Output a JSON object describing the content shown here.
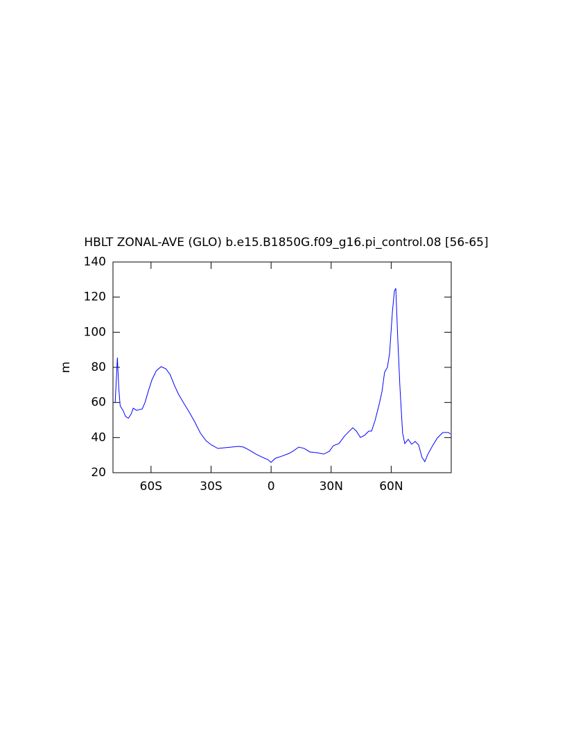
{
  "chart_data": {
    "type": "line",
    "title": "HBLT ZONAL-AVE (GLO) b.e15.B1850G.f09_g16.pi_control.08 [56-65]",
    "y_label": "m",
    "xlim": [
      -79,
      90
    ],
    "ylim": [
      20,
      140
    ],
    "xticks": [
      {
        "value": -60,
        "label": "60S"
      },
      {
        "value": -30,
        "label": "30S"
      },
      0,
      {
        "value": 30,
        "label": "30N"
      },
      {
        "value": 60,
        "label": "60N"
      }
    ],
    "yticks": [
      20,
      40,
      60,
      80,
      100,
      120,
      140
    ],
    "series": [
      {
        "color": "#0000ff",
        "x": [
          -77.9,
          -76.8,
          -76.1,
          -75.4,
          -74,
          -72.7,
          -71.3,
          -69.9,
          -68.9,
          -67.1,
          -65.7,
          -64.4,
          -63,
          -61.2,
          -59.5,
          -57.4,
          -55,
          -52.6,
          -50.5,
          -48.4,
          -46.4,
          -43.6,
          -40.8,
          -38.1,
          -35.3,
          -32.5,
          -29.8,
          -26.6,
          -23.2,
          -19.7,
          -16.3,
          -13.8,
          -11.1,
          -7.6,
          -4.2,
          -1.7,
          0,
          2.1,
          5.5,
          9,
          11.4,
          13.8,
          16.6,
          19.4,
          22.8,
          26.3,
          29.1,
          31.1,
          33.9,
          36.7,
          39.1,
          40.8,
          42.6,
          44.6,
          46.7,
          48.8,
          50.2,
          51.9,
          54,
          55.4,
          56.7,
          58.1,
          59.2,
          60.6,
          61.6,
          62.3,
          63.3,
          64.4,
          65.7,
          66.8,
          68.5,
          70.2,
          72,
          73.7,
          75.4,
          76.8,
          78.2,
          80.3,
          83,
          85.8,
          88.6,
          89.6
        ],
        "values": [
          60,
          85.5,
          68,
          58,
          55.5,
          52,
          51,
          53.5,
          56.7,
          55.5,
          56,
          56.3,
          60,
          67,
          73,
          78,
          80.4,
          79.2,
          76,
          70,
          65,
          59.5,
          54.3,
          48.8,
          42.5,
          38.2,
          35.8,
          33.8,
          34.2,
          34.6,
          35,
          34.6,
          33,
          30.6,
          28.7,
          27.5,
          25.9,
          28.2,
          29.5,
          31,
          32.6,
          34.6,
          33.8,
          31.8,
          31.4,
          30.6,
          32.2,
          35.4,
          36.6,
          40.9,
          43.7,
          45.6,
          43.7,
          40.1,
          41.3,
          43.7,
          43.7,
          49.6,
          59,
          66.2,
          77.2,
          80,
          88,
          111.6,
          123.4,
          125,
          95.8,
          68,
          42.5,
          36.6,
          39,
          36.2,
          37.8,
          35.8,
          28.7,
          26.3,
          30.2,
          34.6,
          39.7,
          42.9,
          42.9,
          42
        ]
      }
    ]
  }
}
